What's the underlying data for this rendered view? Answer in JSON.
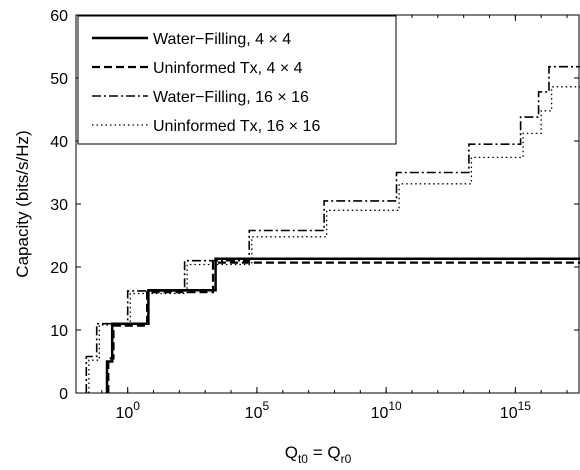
{
  "chart_data": {
    "type": "line",
    "xlabel": {
      "main": "Q",
      "sub1": "t0",
      "eq": " = Q",
      "sub2": "r0"
    },
    "ylabel": "Capacity (bits/s/Hz)",
    "xscale": "log10",
    "xlim_log10": [
      -2,
      17.5
    ],
    "ylim": [
      0,
      60
    ],
    "grid": false,
    "legend_position": "top-left",
    "x_ticks": [
      {
        "log10": 0,
        "base": "10",
        "exp": "0"
      },
      {
        "log10": 5,
        "base": "10",
        "exp": "5"
      },
      {
        "log10": 10,
        "base": "10",
        "exp": "10"
      },
      {
        "log10": 15,
        "base": "10",
        "exp": "15"
      }
    ],
    "y_ticks": [
      0,
      10,
      20,
      30,
      40,
      50,
      60
    ],
    "series": [
      {
        "name": "Water−Filling, 4 × 4",
        "color": "#000000",
        "style": "solid",
        "points": [
          [
            -0.8,
            0
          ],
          [
            -0.8,
            5
          ],
          [
            -0.6,
            5
          ],
          [
            -0.6,
            11
          ],
          [
            0.8,
            11
          ],
          [
            0.8,
            16.3
          ],
          [
            3.4,
            16.3
          ],
          [
            3.4,
            21.3
          ],
          [
            17.5,
            21.3
          ]
        ]
      },
      {
        "name": "Uninformed Tx, 4 × 4",
        "color": "#000000",
        "style": "dashed",
        "points": [
          [
            -0.75,
            0
          ],
          [
            -0.75,
            5.5
          ],
          [
            -0.55,
            5.5
          ],
          [
            -0.55,
            10.7
          ],
          [
            0.75,
            10.7
          ],
          [
            0.75,
            16
          ],
          [
            3.3,
            16
          ],
          [
            3.3,
            20.7
          ],
          [
            17.5,
            20.7
          ]
        ]
      },
      {
        "name": "Water−Filling, 16 × 16",
        "color": "#000000",
        "style": "dashdot",
        "points": [
          [
            -1.6,
            0
          ],
          [
            -1.6,
            5.8
          ],
          [
            -1.2,
            5.8
          ],
          [
            -1.2,
            11
          ],
          [
            0,
            11
          ],
          [
            0,
            16.2
          ],
          [
            2.2,
            16.2
          ],
          [
            2.2,
            21
          ],
          [
            4.7,
            21
          ],
          [
            4.7,
            25.8
          ],
          [
            7.6,
            25.8
          ],
          [
            7.6,
            30.5
          ],
          [
            10.4,
            30.5
          ],
          [
            10.4,
            35
          ],
          [
            13.2,
            35
          ],
          [
            13.2,
            39.5
          ],
          [
            15.2,
            39.5
          ],
          [
            15.2,
            43.8
          ],
          [
            15.9,
            43.8
          ],
          [
            15.9,
            47.8
          ],
          [
            16.3,
            47.8
          ],
          [
            16.3,
            51.8
          ],
          [
            17.5,
            51.8
          ]
        ]
      },
      {
        "name": "Uninformed Tx, 16 × 16",
        "color": "#000000",
        "style": "dotted",
        "points": [
          [
            -1.5,
            0
          ],
          [
            -1.5,
            5.2
          ],
          [
            -1.1,
            5.2
          ],
          [
            -1.1,
            10.8
          ],
          [
            0.1,
            10.8
          ],
          [
            0.1,
            15.8
          ],
          [
            2.3,
            15.8
          ],
          [
            2.3,
            20.4
          ],
          [
            4.8,
            20.4
          ],
          [
            4.8,
            24.8
          ],
          [
            7.7,
            24.8
          ],
          [
            7.7,
            29
          ],
          [
            10.5,
            29
          ],
          [
            10.5,
            33.2
          ],
          [
            13.3,
            33.2
          ],
          [
            13.3,
            37.4
          ],
          [
            15.3,
            37.4
          ],
          [
            15.3,
            41.2
          ],
          [
            16,
            41.2
          ],
          [
            16,
            44.8
          ],
          [
            16.4,
            44.8
          ],
          [
            16.4,
            48.6
          ],
          [
            17.5,
            48.6
          ]
        ]
      }
    ]
  }
}
